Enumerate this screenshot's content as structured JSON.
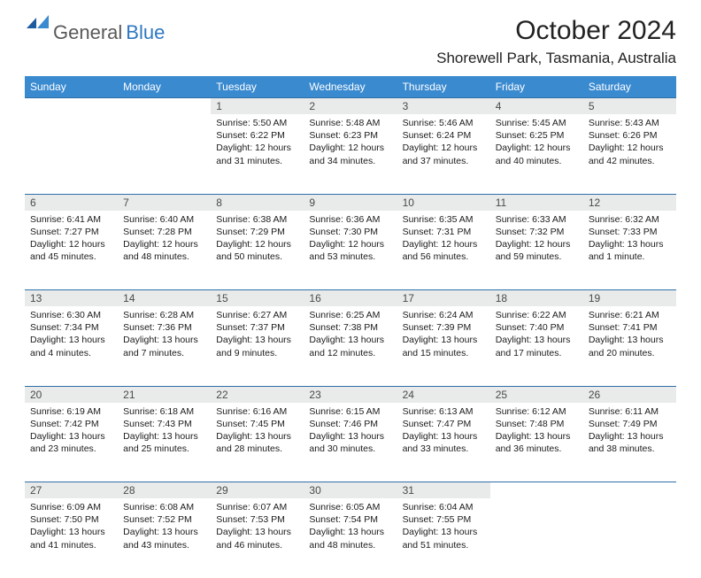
{
  "brand": {
    "part1": "General",
    "part2": "Blue"
  },
  "colors": {
    "header_bg": "#3a8ad0",
    "gray_row": "#e9eaea",
    "border": "#2f6fa8",
    "logo_gray": "#595959",
    "logo_blue": "#2f78c1",
    "text": "#000000",
    "bg": "#ffffff"
  },
  "typography": {
    "body_pt": 10.5,
    "header_pt": 12,
    "title_pt": 30,
    "location_pt": 17
  },
  "title": "October 2024",
  "location": "Shorewell Park, Tasmania, Australia",
  "weekdays": [
    "Sunday",
    "Monday",
    "Tuesday",
    "Wednesday",
    "Thursday",
    "Friday",
    "Saturday"
  ],
  "calendar": {
    "type": "table",
    "columns": 7,
    "weeks": [
      [
        null,
        null,
        {
          "n": "1",
          "sr": "5:50 AM",
          "ss": "6:22 PM",
          "dl": "12 hours and 31 minutes."
        },
        {
          "n": "2",
          "sr": "5:48 AM",
          "ss": "6:23 PM",
          "dl": "12 hours and 34 minutes."
        },
        {
          "n": "3",
          "sr": "5:46 AM",
          "ss": "6:24 PM",
          "dl": "12 hours and 37 minutes."
        },
        {
          "n": "4",
          "sr": "5:45 AM",
          "ss": "6:25 PM",
          "dl": "12 hours and 40 minutes."
        },
        {
          "n": "5",
          "sr": "5:43 AM",
          "ss": "6:26 PM",
          "dl": "12 hours and 42 minutes."
        }
      ],
      [
        {
          "n": "6",
          "sr": "6:41 AM",
          "ss": "7:27 PM",
          "dl": "12 hours and 45 minutes."
        },
        {
          "n": "7",
          "sr": "6:40 AM",
          "ss": "7:28 PM",
          "dl": "12 hours and 48 minutes."
        },
        {
          "n": "8",
          "sr": "6:38 AM",
          "ss": "7:29 PM",
          "dl": "12 hours and 50 minutes."
        },
        {
          "n": "9",
          "sr": "6:36 AM",
          "ss": "7:30 PM",
          "dl": "12 hours and 53 minutes."
        },
        {
          "n": "10",
          "sr": "6:35 AM",
          "ss": "7:31 PM",
          "dl": "12 hours and 56 minutes."
        },
        {
          "n": "11",
          "sr": "6:33 AM",
          "ss": "7:32 PM",
          "dl": "12 hours and 59 minutes."
        },
        {
          "n": "12",
          "sr": "6:32 AM",
          "ss": "7:33 PM",
          "dl": "13 hours and 1 minute."
        }
      ],
      [
        {
          "n": "13",
          "sr": "6:30 AM",
          "ss": "7:34 PM",
          "dl": "13 hours and 4 minutes."
        },
        {
          "n": "14",
          "sr": "6:28 AM",
          "ss": "7:36 PM",
          "dl": "13 hours and 7 minutes."
        },
        {
          "n": "15",
          "sr": "6:27 AM",
          "ss": "7:37 PM",
          "dl": "13 hours and 9 minutes."
        },
        {
          "n": "16",
          "sr": "6:25 AM",
          "ss": "7:38 PM",
          "dl": "13 hours and 12 minutes."
        },
        {
          "n": "17",
          "sr": "6:24 AM",
          "ss": "7:39 PM",
          "dl": "13 hours and 15 minutes."
        },
        {
          "n": "18",
          "sr": "6:22 AM",
          "ss": "7:40 PM",
          "dl": "13 hours and 17 minutes."
        },
        {
          "n": "19",
          "sr": "6:21 AM",
          "ss": "7:41 PM",
          "dl": "13 hours and 20 minutes."
        }
      ],
      [
        {
          "n": "20",
          "sr": "6:19 AM",
          "ss": "7:42 PM",
          "dl": "13 hours and 23 minutes."
        },
        {
          "n": "21",
          "sr": "6:18 AM",
          "ss": "7:43 PM",
          "dl": "13 hours and 25 minutes."
        },
        {
          "n": "22",
          "sr": "6:16 AM",
          "ss": "7:45 PM",
          "dl": "13 hours and 28 minutes."
        },
        {
          "n": "23",
          "sr": "6:15 AM",
          "ss": "7:46 PM",
          "dl": "13 hours and 30 minutes."
        },
        {
          "n": "24",
          "sr": "6:13 AM",
          "ss": "7:47 PM",
          "dl": "13 hours and 33 minutes."
        },
        {
          "n": "25",
          "sr": "6:12 AM",
          "ss": "7:48 PM",
          "dl": "13 hours and 36 minutes."
        },
        {
          "n": "26",
          "sr": "6:11 AM",
          "ss": "7:49 PM",
          "dl": "13 hours and 38 minutes."
        }
      ],
      [
        {
          "n": "27",
          "sr": "6:09 AM",
          "ss": "7:50 PM",
          "dl": "13 hours and 41 minutes."
        },
        {
          "n": "28",
          "sr": "6:08 AM",
          "ss": "7:52 PM",
          "dl": "13 hours and 43 minutes."
        },
        {
          "n": "29",
          "sr": "6:07 AM",
          "ss": "7:53 PM",
          "dl": "13 hours and 46 minutes."
        },
        {
          "n": "30",
          "sr": "6:05 AM",
          "ss": "7:54 PM",
          "dl": "13 hours and 48 minutes."
        },
        {
          "n": "31",
          "sr": "6:04 AM",
          "ss": "7:55 PM",
          "dl": "13 hours and 51 minutes."
        },
        null,
        null
      ]
    ]
  },
  "labels": {
    "sunrise": "Sunrise:",
    "sunset": "Sunset:",
    "daylight": "Daylight:"
  }
}
